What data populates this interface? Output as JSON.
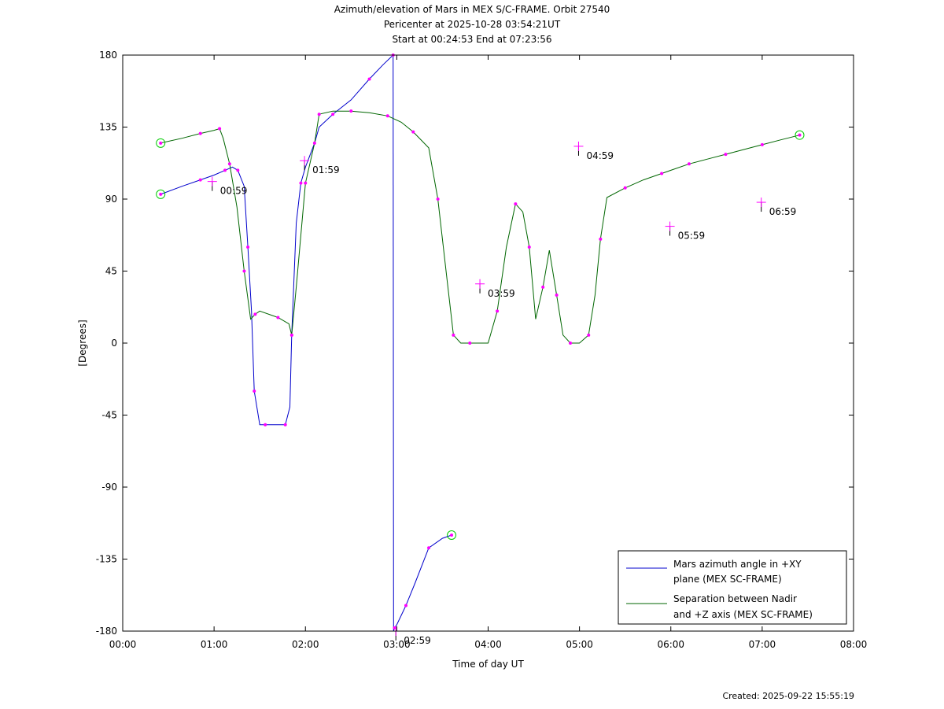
{
  "title_lines": [
    "Azimuth/elevation of Mars in MEX S/C-FRAME.  Orbit 27540",
    "Pericenter at 2025-10-28 03:54:21UT",
    "Start at 00:24:53 End at 07:23:56"
  ],
  "created": "Created: 2025-09-22 15:55:19",
  "colors": {
    "azimuth": "#0000cc",
    "separation": "#006600",
    "marker": "#ff00ff",
    "endpoint": "#00cc00"
  },
  "chart_data": {
    "type": "line",
    "xlabel": "Time of day UT",
    "ylabel": "[Degrees]",
    "xlim": [
      0,
      8
    ],
    "ylim": [
      -180,
      180
    ],
    "x_ticks": [
      0,
      1,
      2,
      3,
      4,
      5,
      6,
      7,
      8
    ],
    "x_tick_labels": [
      "00:00",
      "01:00",
      "02:00",
      "03:00",
      "04:00",
      "05:00",
      "06:00",
      "07:00",
      "08:00"
    ],
    "y_ticks": [
      180,
      135,
      90,
      45,
      0,
      -45,
      -90,
      -135,
      -180
    ],
    "y_tick_labels": [
      "180",
      "135",
      "90",
      "45",
      "0",
      "-45",
      "-90",
      "-135",
      "-180"
    ],
    "legend_position": "bottom-right",
    "series": [
      {
        "name": "Mars azimuth angle in +XY plane (MEX SC-FRAME)",
        "legend_lines": [
          "Mars azimuth angle in +XY",
          "plane (MEX SC-FRAME)"
        ],
        "color": "#0000cc",
        "x": [
          0.415,
          0.65,
          0.85,
          1.0,
          1.12,
          1.2,
          1.26,
          1.33,
          1.37,
          1.41,
          1.44,
          1.5,
          1.56,
          1.67,
          1.78,
          1.83,
          1.85,
          1.9,
          1.95,
          2.0,
          2.1,
          2.15,
          2.3,
          2.5,
          2.7,
          2.85,
          2.96,
          2.965,
          2.975,
          3.0,
          3.1,
          3.2,
          3.35,
          3.5,
          3.6
        ],
        "y": [
          93,
          98,
          102,
          105,
          108,
          110,
          108,
          98,
          60,
          20,
          -30,
          -51,
          -51,
          -51,
          -51,
          -40,
          5,
          75,
          100,
          110,
          125,
          135,
          143,
          152,
          165,
          174,
          180,
          -180,
          -178,
          -176,
          -164,
          -150,
          -128,
          -122,
          -120
        ]
      },
      {
        "name": "Separation between Nadir and +Z axis (MEX SC-FRAME)",
        "legend_lines": [
          "Separation between Nadir",
          "and +Z axis (MEX SC-FRAME)"
        ],
        "color": "#006600",
        "x": [
          0.415,
          0.65,
          0.85,
          1.0,
          1.06,
          1.1,
          1.17,
          1.25,
          1.33,
          1.4,
          1.45,
          1.5,
          1.7,
          1.82,
          1.85,
          1.9,
          2.0,
          2.1,
          2.15,
          2.3,
          2.5,
          2.7,
          2.9,
          3.05,
          3.18,
          3.35,
          3.45,
          3.55,
          3.62,
          3.7,
          3.8,
          4.0,
          4.1,
          4.2,
          4.3,
          4.38,
          4.45,
          4.52,
          4.6,
          4.67,
          4.75,
          4.82,
          4.9,
          5.0,
          5.1,
          5.17,
          5.23,
          5.3,
          5.5,
          5.7,
          5.9,
          6.0,
          6.2,
          6.4,
          6.6,
          6.8,
          7.0,
          7.2,
          7.41
        ],
        "y": [
          125,
          128,
          131,
          133,
          134,
          128,
          112,
          85,
          45,
          15,
          18,
          20,
          16,
          12,
          5,
          35,
          100,
          125,
          143,
          145,
          145,
          144,
          142,
          138,
          132,
          122,
          90,
          40,
          5,
          0,
          0,
          0,
          20,
          60,
          87,
          82,
          60,
          15,
          35,
          58,
          30,
          5,
          0,
          0,
          5,
          30,
          65,
          91,
          97,
          102,
          106,
          108,
          112,
          115,
          118,
          121,
          124,
          127,
          130
        ]
      }
    ],
    "annotations": [
      {
        "label": "00:59",
        "x": 0.98,
        "y": 101
      },
      {
        "label": "01:59",
        "x": 1.99,
        "y": 114
      },
      {
        "label": "02:59",
        "x": 2.99,
        "y": -180
      },
      {
        "label": "03:59",
        "x": 3.91,
        "y": 37
      },
      {
        "label": "04:59",
        "x": 4.99,
        "y": 123
      },
      {
        "label": "05:59",
        "x": 5.99,
        "y": 73
      },
      {
        "label": "06:59",
        "x": 6.99,
        "y": 88
      }
    ]
  }
}
